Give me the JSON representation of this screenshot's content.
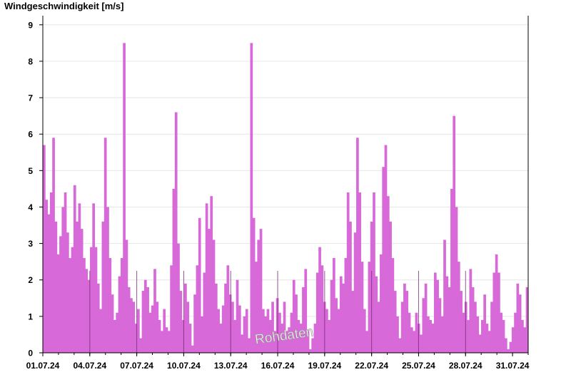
{
  "chart_data": {
    "type": "bar",
    "ylabel": "Windgeschwindigkeit [m/s]",
    "ylim": [
      0,
      9.25
    ],
    "yticks": [
      0,
      1,
      2,
      3,
      4,
      5,
      6,
      7,
      8,
      9
    ],
    "xlim": [
      "01.07.24 00:00",
      "31.07.24 24:00"
    ],
    "xticks": [
      "01.07.24",
      "04.07.24",
      "07.07.24",
      "10.07.24",
      "13.07.24",
      "16.07.24",
      "19.07.24",
      "22.07.24",
      "25.07.24",
      "28.07.24",
      "31.07.24"
    ],
    "grid": true,
    "bar_color": "#d869d8",
    "annotation": "Rohdaten",
    "series": [
      {
        "resolution": "3h",
        "values": [
          5.7,
          4.2,
          3.8,
          4.4,
          5.9,
          3.6,
          2.7,
          3.2,
          4.0,
          4.4,
          3.3,
          2.6,
          2.9,
          4.6,
          3.6,
          4.1,
          3.4,
          2.6,
          2.3,
          2.0,
          2.9,
          4.1,
          2.9,
          1.9,
          1.2,
          3.6,
          5.9,
          4.0,
          2.6,
          1.6,
          0.9,
          1.1,
          2.1,
          2.6,
          8.5,
          3.1,
          1.8,
          1.5,
          1.4,
          0.8,
          1.2,
          0.4,
          1.7,
          2.0,
          1.8,
          1.1,
          1.3,
          2.3,
          1.4,
          0.9,
          0.6,
          1.2,
          0.7,
          0.6,
          2.4,
          4.5,
          6.6,
          3.0,
          1.7,
          0.9,
          1.9,
          1.4,
          0.8,
          0.2,
          1.6,
          2.4,
          3.7,
          1.0,
          2.2,
          4.1,
          3.4,
          4.3,
          3.1,
          1.9,
          1.2,
          0.8,
          1.3,
          1.9,
          2.4,
          1.6,
          1.4,
          0.9,
          2.0,
          1.3,
          0.5,
          1.0,
          1.2,
          0.4,
          8.5,
          3.7,
          2.5,
          3.1,
          3.4,
          1.2,
          1.0,
          1.2,
          0.9,
          1.4,
          0.6,
          1.5,
          1.1,
          0.8,
          1.4,
          0.6,
          0.7,
          1.1,
          2.0,
          1.6,
          0.9,
          0.8,
          1.8,
          2.3,
          0.6,
          0.1,
          0.4,
          0.8,
          2.2,
          2.9,
          2.4,
          1.4,
          1.2,
          0.9,
          2.0,
          2.6,
          1.5,
          1.2,
          2.1,
          1.9,
          2.6,
          4.4,
          3.6,
          1.7,
          3.3,
          5.9,
          4.4,
          2.5,
          1.2,
          0.6,
          2.5,
          3.6,
          4.4,
          2.1,
          1.4,
          2.7,
          5.1,
          5.7,
          4.3,
          3.6,
          2.6,
          1.7,
          1.0,
          0.4,
          1.4,
          1.9,
          1.7,
          1.1,
          0.7,
          0.6,
          1.1,
          0.8,
          0.5,
          1.5,
          1.9,
          1.0,
          0.9,
          0.8,
          2.2,
          2.0,
          1.5,
          1.0,
          3.1,
          2.1,
          1.8,
          4.5,
          6.5,
          4.0,
          2.5,
          1.7,
          1.1,
          1.4,
          0.9,
          2.3,
          1.8,
          1.4,
          1.0,
          0.5,
          0.9,
          1.6,
          0.8,
          0.6,
          1.4,
          2.2,
          2.7,
          2.2,
          1.1,
          0.9,
          0.4,
          0.1,
          0.3,
          0.7,
          1.1,
          1.9,
          1.6,
          0.9,
          0.7,
          1.8
        ]
      }
    ]
  }
}
